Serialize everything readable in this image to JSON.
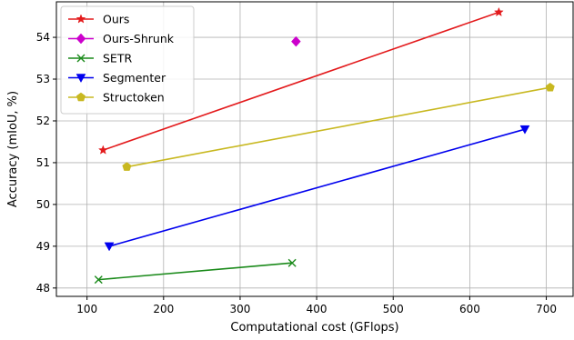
{
  "chart_data": {
    "type": "line",
    "title": "",
    "xlabel": "Computational cost (GFlops)",
    "ylabel": "Accuracy (mIoU, %)",
    "xlim": [
      60,
      735
    ],
    "ylim": [
      47.8,
      54.85
    ],
    "xticks": [
      100,
      200,
      300,
      400,
      500,
      600,
      700
    ],
    "yticks": [
      48,
      49,
      50,
      51,
      52,
      53,
      54
    ],
    "grid": true,
    "legend_position": "top-left",
    "series": [
      {
        "name": "Ours",
        "color": "#e31a1c",
        "marker": "star",
        "x": [
          121,
          638
        ],
        "y": [
          51.3,
          54.6
        ]
      },
      {
        "name": "Ours-Shrunk",
        "color": "#cc00cc",
        "marker": "diamond",
        "x": [
          373
        ],
        "y": [
          53.9
        ]
      },
      {
        "name": "SETR",
        "color": "#1a8a1a",
        "marker": "x",
        "x": [
          115,
          368
        ],
        "y": [
          48.2,
          48.6
        ]
      },
      {
        "name": "Segmenter",
        "color": "#0000ee",
        "marker": "triangle-down",
        "x": [
          129,
          672
        ],
        "y": [
          49.0,
          51.8
        ]
      },
      {
        "name": "Structoken",
        "color": "#c8b820",
        "marker": "pentagon",
        "x": [
          152,
          705
        ],
        "y": [
          50.9,
          52.8
        ]
      }
    ]
  }
}
